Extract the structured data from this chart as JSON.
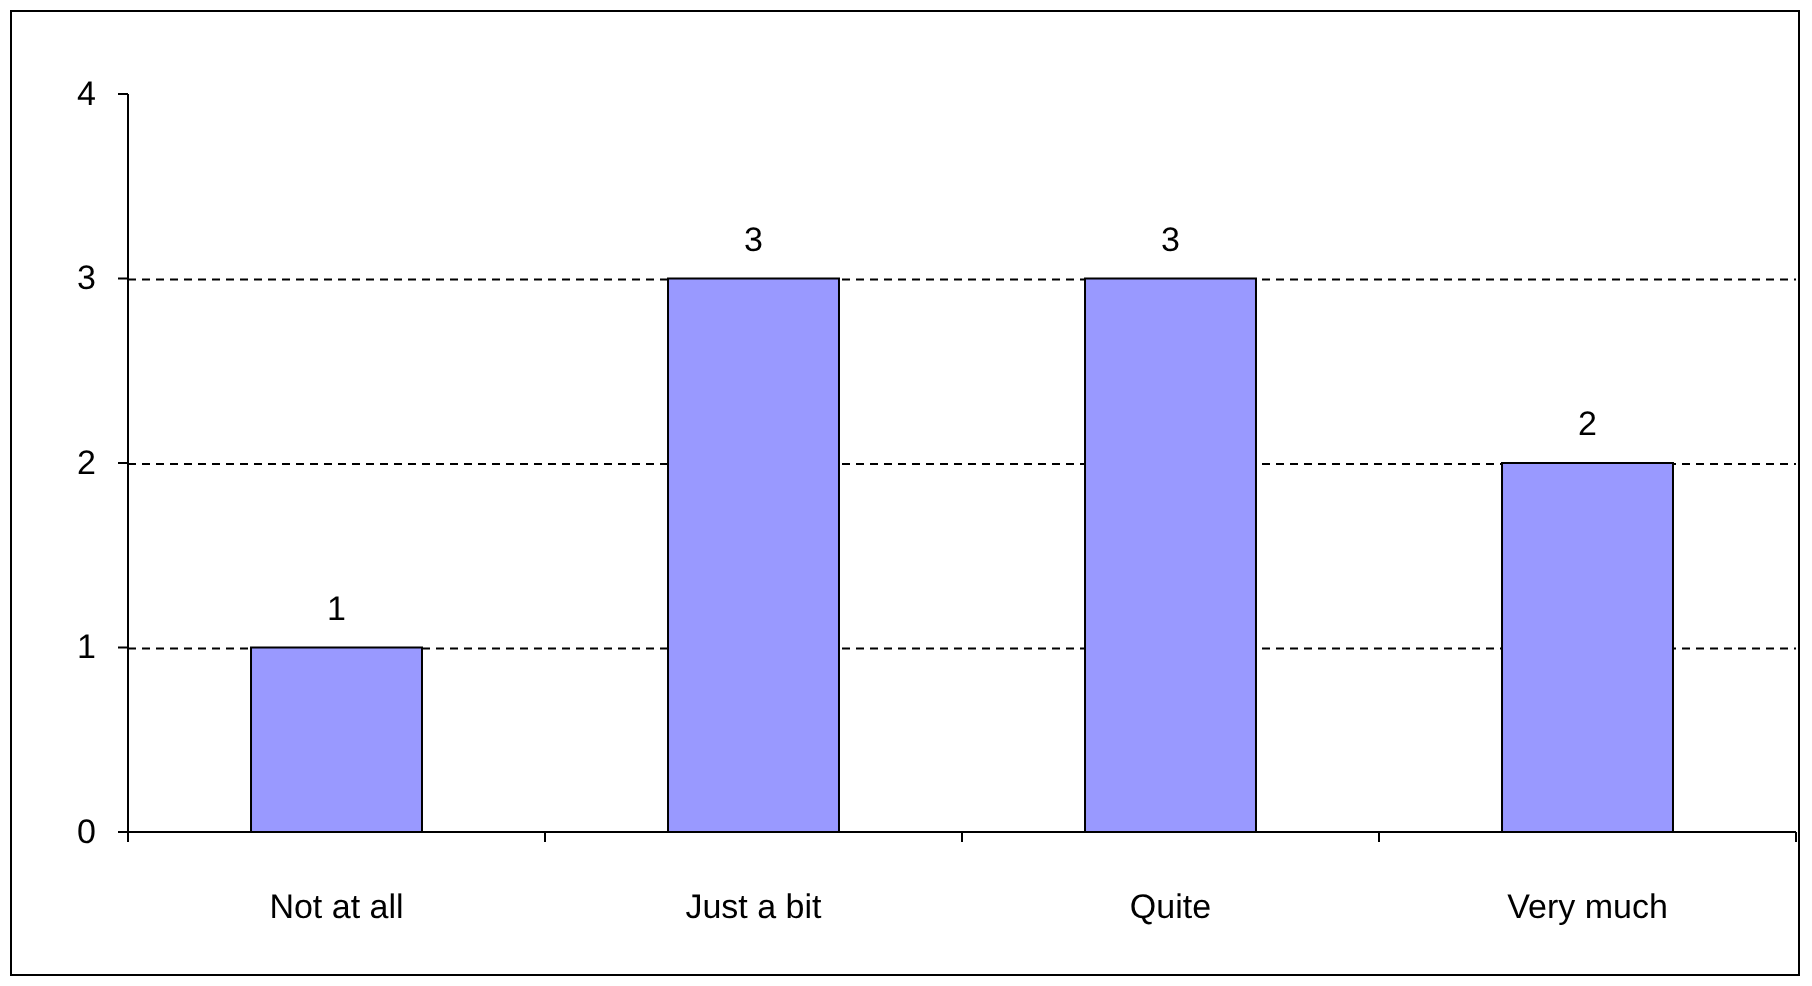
{
  "chart_data": {
    "type": "bar",
    "categories": [
      "Not at all",
      "Just a bit",
      "Quite",
      "Very much"
    ],
    "values": [
      1,
      3,
      3,
      2
    ],
    "color": "#9999ff",
    "ylim": [
      0,
      4
    ],
    "yticks": [
      0,
      1,
      2,
      3,
      4
    ],
    "grid": "y",
    "data_labels": true
  }
}
